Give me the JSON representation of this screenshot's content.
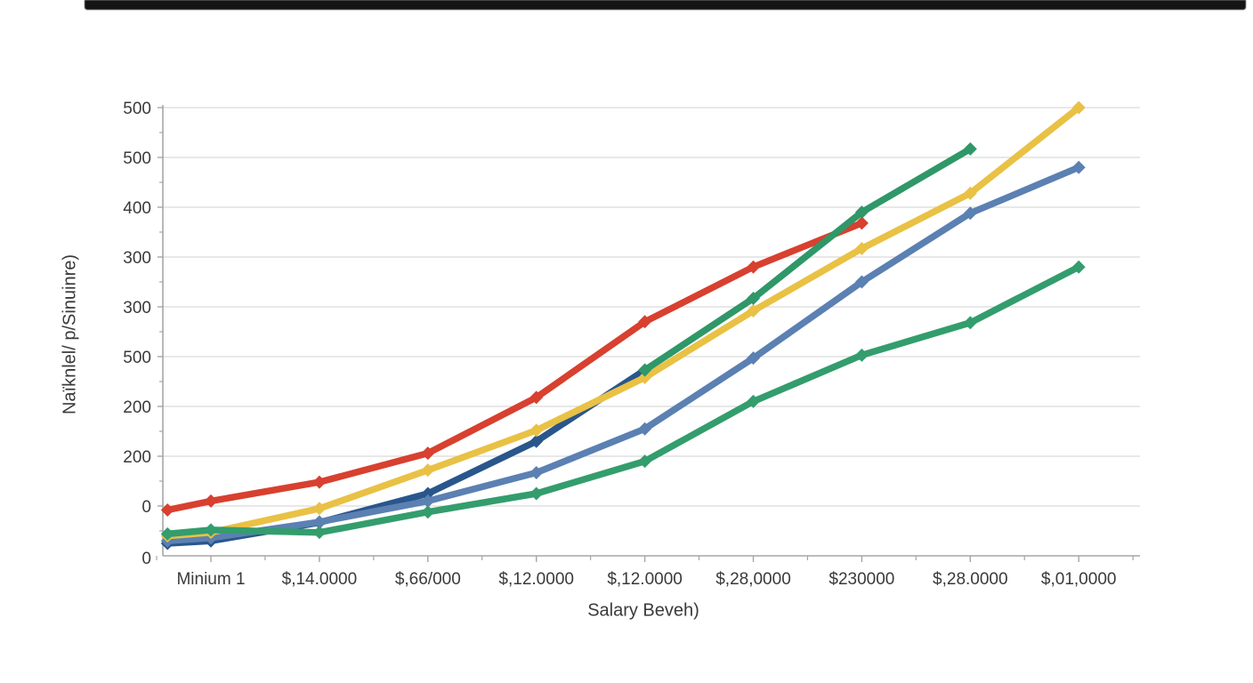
{
  "top_bar": {
    "color": "#151515"
  },
  "chart": {
    "xlabel": "Salary Beveh)",
    "ylabel": "Naïknlel/ p/Sinuinre)"
  },
  "chart_data": {
    "type": "line",
    "title": "",
    "xlabel": "Salary Beveh)",
    "ylabel": "Naïknlel/ p/Sinuinre)",
    "categories": [
      "Minium 1",
      "$,14.0000",
      "$,66/000",
      "$,12.0000",
      "$,12.0000",
      "$,28,0000",
      "$230000",
      "$,28.0000",
      "$,01,0000"
    ],
    "y_tick_labels_top_to_bottom": [
      "500",
      "500",
      "400",
      "300",
      "300",
      "500",
      "200",
      "200",
      "0",
      "0"
    ],
    "grid": true,
    "legend": "none",
    "axis_color": "#a6a6a6",
    "grid_color": "#d9d9d9",
    "text_color": "#3a3a3a",
    "units_note": "x = category index (first tick = 0, lines start at -0.4); y = gridline steps above the x-axis baseline (one step = one horizontal gridline spacing, labels as printed are garbled)",
    "series": [
      {
        "name": "navy-series",
        "color": "#29568c",
        "points": [
          [
            -0.4,
            0.25
          ],
          [
            0,
            0.3
          ],
          [
            1,
            0.67
          ],
          [
            2,
            1.25
          ],
          [
            3,
            2.3
          ],
          [
            4,
            3.73
          ]
        ]
      },
      {
        "name": "blue-series",
        "color": "#5b80b2",
        "points": [
          [
            -0.4,
            0.3
          ],
          [
            0,
            0.36
          ],
          [
            1,
            0.68
          ],
          [
            2,
            1.1
          ],
          [
            3,
            1.67
          ],
          [
            4,
            2.55
          ],
          [
            5,
            3.97
          ],
          [
            6,
            5.5
          ],
          [
            7,
            6.88
          ],
          [
            8,
            7.8
          ]
        ]
      },
      {
        "name": "gold-series",
        "color": "#e9c144",
        "points": [
          [
            -0.4,
            0.4
          ],
          [
            0,
            0.47
          ],
          [
            1,
            0.95
          ],
          [
            2,
            1.72
          ],
          [
            3,
            2.52
          ],
          [
            4,
            3.58
          ],
          [
            5,
            4.92
          ],
          [
            6,
            6.17
          ],
          [
            7,
            7.28
          ],
          [
            8,
            9.0
          ]
        ]
      },
      {
        "name": "green-low-series",
        "color": "#339d6d",
        "points": [
          [
            -0.4,
            0.44
          ],
          [
            0,
            0.52
          ],
          [
            1,
            0.47
          ],
          [
            2,
            0.88
          ],
          [
            3,
            1.25
          ],
          [
            4,
            1.9
          ],
          [
            5,
            3.1
          ],
          [
            6,
            4.03
          ],
          [
            7,
            4.68
          ],
          [
            8,
            5.8
          ]
        ]
      },
      {
        "name": "red-series",
        "color": "#d8402f",
        "points": [
          [
            -0.4,
            0.92
          ],
          [
            0,
            1.1
          ],
          [
            1,
            1.48
          ],
          [
            2,
            2.06
          ],
          [
            3,
            3.18
          ],
          [
            4,
            4.7
          ],
          [
            5,
            5.8
          ],
          [
            6,
            6.68
          ]
        ]
      },
      {
        "name": "green-steep-series",
        "color": "#2f9768",
        "points": [
          [
            4,
            3.73
          ],
          [
            5,
            5.17
          ],
          [
            6,
            6.9
          ],
          [
            7,
            8.17
          ]
        ]
      }
    ]
  }
}
